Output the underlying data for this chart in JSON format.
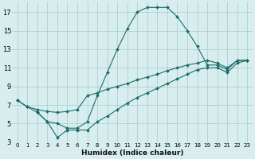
{
  "xlabel": "Humidex (Indice chaleur)",
  "background_color": "#d8eeee",
  "grid_color": "#aed0cc",
  "line_color": "#1a6b6b",
  "xlim": [
    -0.5,
    23.5
  ],
  "ylim": [
    3,
    18
  ],
  "xticks": [
    0,
    1,
    2,
    3,
    4,
    5,
    6,
    7,
    8,
    9,
    10,
    11,
    12,
    13,
    14,
    15,
    16,
    17,
    18,
    19,
    20,
    21,
    22,
    23
  ],
  "yticks": [
    3,
    5,
    7,
    9,
    11,
    13,
    15,
    17
  ],
  "series": [
    {
      "x": [
        0,
        1,
        2,
        3,
        4,
        5,
        6,
        7,
        8,
        9,
        10,
        11,
        12,
        13,
        14,
        15,
        16,
        17,
        18,
        19,
        20,
        21,
        22,
        23
      ],
      "y": [
        7.5,
        6.8,
        6.2,
        5.2,
        5.0,
        4.5,
        4.5,
        5.2,
        8.0,
        10.5,
        13.0,
        15.2,
        17.0,
        17.5,
        17.5,
        17.5,
        16.5,
        15.0,
        13.3,
        11.3,
        11.3,
        10.8,
        11.8,
        11.8
      ]
    },
    {
      "x": [
        0,
        1,
        2,
        3,
        4,
        5,
        6,
        7,
        8,
        9,
        10,
        11,
        12,
        13,
        14,
        15,
        16,
        17,
        18,
        19,
        20,
        21,
        22,
        23
      ],
      "y": [
        7.5,
        6.8,
        6.5,
        6.3,
        6.2,
        6.3,
        6.5,
        8.0,
        8.3,
        8.7,
        9.0,
        9.3,
        9.7,
        10.0,
        10.3,
        10.7,
        11.0,
        11.3,
        11.5,
        11.8,
        11.5,
        11.0,
        11.8,
        11.8
      ]
    },
    {
      "x": [
        2,
        3,
        4,
        5,
        6,
        7,
        8,
        9,
        10,
        11,
        12,
        13,
        14,
        15,
        16,
        17,
        18,
        19,
        20,
        21,
        22,
        23
      ],
      "y": [
        6.2,
        5.2,
        3.5,
        4.3,
        4.3,
        4.3,
        5.2,
        5.8,
        6.5,
        7.2,
        7.8,
        8.3,
        8.8,
        9.3,
        9.8,
        10.3,
        10.8,
        11.0,
        11.0,
        10.5,
        11.5,
        11.8
      ]
    }
  ]
}
